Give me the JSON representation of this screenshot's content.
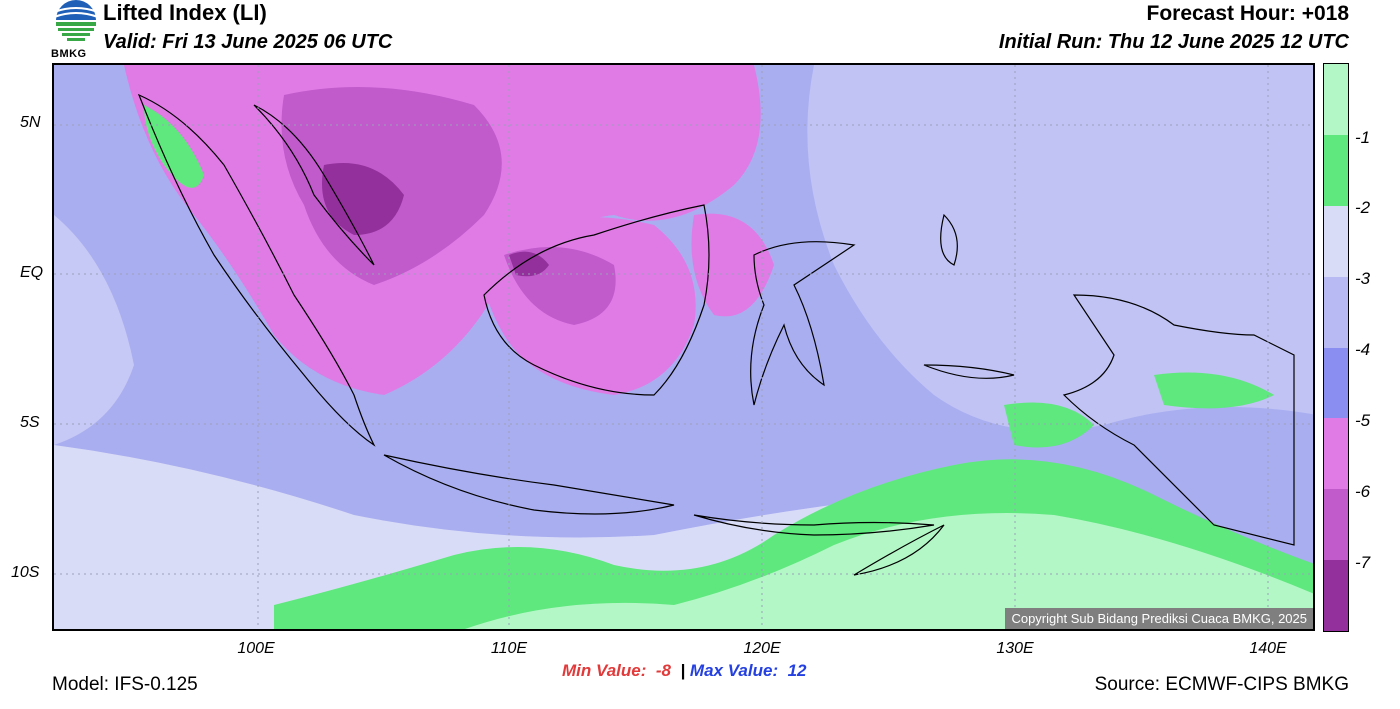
{
  "header": {
    "title": "Lifted Index (LI)",
    "valid": "Valid: Fri 13 June 2025 06 UTC",
    "forecast_hour": "Forecast Hour: +018",
    "initial_run": "Initial Run: Thu 12 June 2025 12 UTC"
  },
  "logo": {
    "text": "BMKG",
    "icon": "bmkg-logo-icon"
  },
  "map": {
    "lat_labels": [
      "5N",
      "EQ",
      "5S",
      "10S"
    ],
    "lon_labels": [
      "100E",
      "110E",
      "120E",
      "130E",
      "140E"
    ],
    "copyright": "Copyright Sub Bidang Prediksi Cuaca BMKG, 2025"
  },
  "colorbar": {
    "labels": [
      "-1",
      "-2",
      "-3",
      "-4",
      "-5",
      "-6",
      "-7"
    ],
    "colors": [
      "#b3f7c6",
      "#5fe87e",
      "#d9dcf7",
      "#b8bbf3",
      "#8a8ef0",
      "#e07be6",
      "#c15bcc",
      "#93309b"
    ]
  },
  "footer": {
    "min_label": "Min Value:",
    "min_value": "-8",
    "separator": "|",
    "max_label": "Max Value:",
    "max_value": "12",
    "model": "Model: IFS-0.125",
    "source": "Source: ECMWF-CIPS BMKG"
  }
}
